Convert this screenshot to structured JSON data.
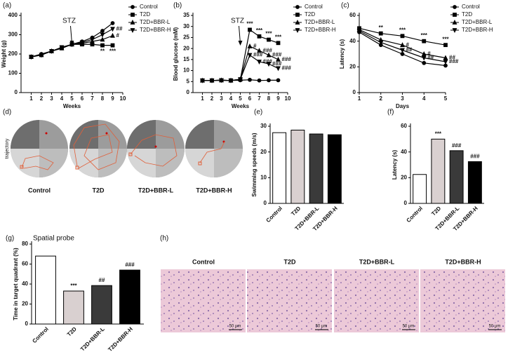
{
  "chart_data": [
    {
      "type": "line",
      "label": "(a)",
      "xlabel": "Weeks",
      "ylabel": "Weight (g)",
      "x": [
        1,
        2,
        3,
        4,
        5,
        6,
        7,
        8,
        9
      ],
      "xlim": [
        0,
        10
      ],
      "xticks": [
        1,
        2,
        3,
        4,
        5,
        6,
        7,
        8,
        9,
        10
      ],
      "ylim": [
        0,
        400
      ],
      "yticks": [
        0,
        100,
        200,
        300,
        400
      ],
      "annotation": {
        "text": "STZ",
        "x": 5
      },
      "series": [
        {
          "name": "Control",
          "marker": "circle",
          "color": "#000000",
          "values": [
            185,
            200,
            215,
            230,
            250,
            265,
            285,
            320,
            360
          ],
          "marks": [
            null,
            null,
            null,
            null,
            null,
            null,
            null,
            null,
            null
          ]
        },
        {
          "name": "T2D",
          "marker": "square",
          "color": "#000000",
          "values": [
            185,
            195,
            215,
            230,
            250,
            250,
            250,
            245,
            245
          ],
          "marks": [
            null,
            null,
            null,
            null,
            null,
            null,
            null,
            "**",
            "***"
          ]
        },
        {
          "name": "T2D+BBR-L",
          "marker": "triangle-up",
          "color": "#000000",
          "values": [
            185,
            195,
            215,
            230,
            250,
            255,
            265,
            275,
            295
          ],
          "marks": [
            null,
            null,
            null,
            null,
            null,
            null,
            null,
            null,
            "#"
          ]
        },
        {
          "name": "T2D+BBR-H",
          "marker": "triangle-down",
          "color": "#000000",
          "values": [
            185,
            195,
            215,
            235,
            250,
            260,
            275,
            300,
            330
          ],
          "marks": [
            null,
            null,
            null,
            null,
            null,
            null,
            null,
            null,
            "##"
          ]
        }
      ]
    },
    {
      "type": "line",
      "label": "(b)",
      "xlabel": "Weeks",
      "ylabel": "Blood glucose (mM)",
      "x": [
        1,
        2,
        3,
        4,
        5,
        6,
        7,
        8,
        9
      ],
      "xlim": [
        0,
        10
      ],
      "xticks": [
        1,
        2,
        3,
        4,
        5,
        6,
        7,
        8,
        9,
        10
      ],
      "ylim": [
        0,
        35
      ],
      "yticks": [
        0,
        5,
        10,
        15,
        20,
        25,
        30,
        35
      ],
      "annotation": {
        "text": "STZ",
        "x": 5
      },
      "series": [
        {
          "name": "Control",
          "marker": "circle",
          "color": "#000000",
          "values": [
            5.5,
            5.5,
            5.6,
            5.5,
            5.6,
            5.8,
            5.5,
            5.6,
            5.6
          ],
          "marks": [
            null,
            null,
            null,
            null,
            null,
            null,
            null,
            null,
            null
          ]
        },
        {
          "name": "T2D",
          "marker": "square",
          "color": "#000000",
          "values": [
            5.5,
            5.5,
            5.6,
            5.5,
            6,
            28.5,
            25.5,
            24,
            22.5
          ],
          "marks": [
            null,
            null,
            null,
            null,
            null,
            "***",
            "***",
            "***",
            "***"
          ]
        },
        {
          "name": "T2D+BBR-L",
          "marker": "triangle-up",
          "color": "#000000",
          "values": [
            5.5,
            5.5,
            5.6,
            5.5,
            6,
            21,
            19,
            17,
            15
          ],
          "marks": [
            null,
            null,
            null,
            null,
            null,
            "#",
            "###",
            "###",
            "###"
          ]
        },
        {
          "name": "T2D+BBR-H",
          "marker": "triangle-down",
          "color": "#000000",
          "values": [
            5.5,
            5.5,
            5.6,
            5.5,
            6,
            17,
            14,
            13,
            11
          ],
          "marks": [
            null,
            null,
            null,
            null,
            null,
            "###",
            "###",
            "###",
            "###"
          ]
        }
      ]
    },
    {
      "type": "line",
      "label": "(c)",
      "xlabel": "Days",
      "ylabel": "Latency (s)",
      "x": [
        1,
        2,
        3,
        4,
        5
      ],
      "xlim": [
        1,
        5
      ],
      "xticks": [
        1,
        2,
        3,
        4,
        5
      ],
      "ylim": [
        0,
        60
      ],
      "yticks": [
        0,
        20,
        40,
        60
      ],
      "series": [
        {
          "name": "Control",
          "marker": "circle",
          "color": "#000000",
          "values": [
            47,
            37,
            30,
            23,
            21
          ],
          "marks": [
            null,
            null,
            null,
            null,
            null
          ]
        },
        {
          "name": "T2D",
          "marker": "square",
          "color": "#000000",
          "values": [
            50,
            46,
            44,
            40,
            37
          ],
          "marks": [
            null,
            "**",
            "***",
            "***",
            "***"
          ]
        },
        {
          "name": "T2D+BBR-L",
          "marker": "triangle-up",
          "color": "#000000",
          "values": [
            49,
            41,
            37,
            30,
            27
          ],
          "marks": [
            null,
            null,
            "#",
            "#",
            "##"
          ]
        },
        {
          "name": "T2D+BBR-H",
          "marker": "triangle-down",
          "color": "#000000",
          "values": [
            48,
            39,
            33,
            27,
            24
          ],
          "marks": [
            null,
            null,
            "##",
            "##",
            "###"
          ]
        }
      ]
    },
    {
      "type": "bar",
      "label": "(e)",
      "ylabel": "Swimming speeds (m/s)",
      "categories": [
        "Control",
        "T2D",
        "T2D+BBR-L",
        "T2D+BBR-H"
      ],
      "values": [
        27.5,
        28.5,
        27,
        26.7
      ],
      "colors": [
        "#ffffff",
        "#d9d0d0",
        "#3a3a3a",
        "#000000"
      ],
      "marks": [
        null,
        null,
        null,
        null
      ],
      "ylim": [
        0,
        30
      ],
      "yticks": [
        0,
        10,
        20,
        30
      ]
    },
    {
      "type": "bar",
      "label": "(f)",
      "ylabel": "Latency (s)",
      "categories": [
        "Control",
        "T2D",
        "T2D+BBR-L",
        "T2D+BBR-H"
      ],
      "values": [
        22.5,
        50,
        41,
        32.5
      ],
      "colors": [
        "#ffffff",
        "#d9d0d0",
        "#3a3a3a",
        "#000000"
      ],
      "marks": [
        null,
        "***",
        "###",
        "###"
      ],
      "ylim": [
        0,
        60
      ],
      "yticks": [
        0,
        20,
        40,
        60
      ]
    },
    {
      "type": "bar",
      "label": "(g)",
      "title": "Spatial probe",
      "ylabel": "Time in target quadrant (%)",
      "categories": [
        "Control",
        "T2D",
        "T2D+BBR-L",
        "T2D+BBR-H"
      ],
      "values": [
        68,
        33,
        38.5,
        54
      ],
      "colors": [
        "#ffffff",
        "#d9d0d0",
        "#3a3a3a",
        "#000000"
      ],
      "marks": [
        null,
        "***",
        "##",
        "###"
      ],
      "ylim": [
        0,
        80
      ],
      "yticks": [
        0,
        20,
        40,
        60,
        80
      ]
    }
  ],
  "image_panels": [
    {
      "label": "(d)",
      "ylabel": "trajectory",
      "captions": [
        "Control",
        "T2D",
        "T2D+BBR-L",
        "T2D+BBR-H"
      ]
    },
    {
      "label": "(h)",
      "captions": [
        "Control",
        "T2D",
        "T2D+BBR-L",
        "T2D+BBR-H"
      ],
      "scale_bar": "50 μm"
    }
  ]
}
